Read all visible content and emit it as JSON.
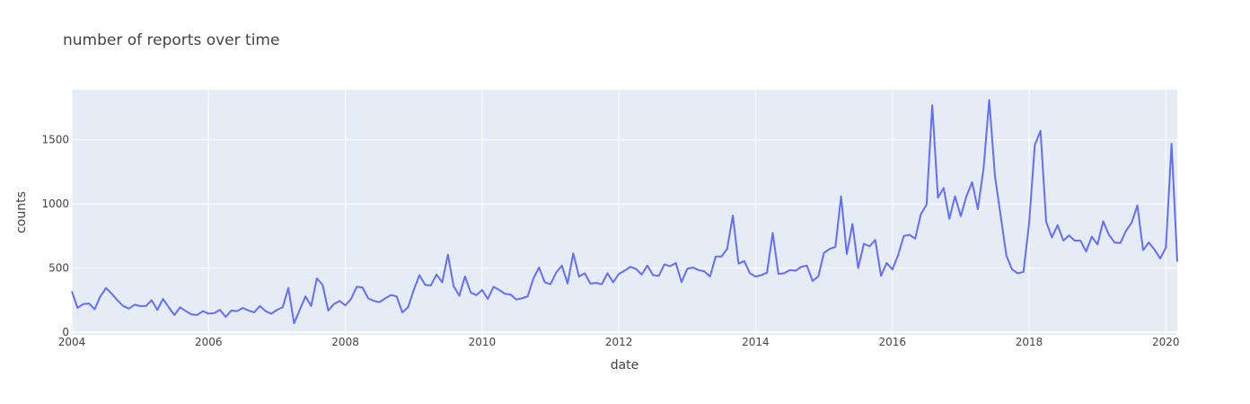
{
  "chart_data": {
    "type": "line",
    "title": "number of reports over time",
    "xlabel": "date",
    "ylabel": "counts",
    "xlim": [
      "2004-01",
      "2020-03"
    ],
    "ylim": [
      -20,
      1890
    ],
    "x_ticks": [
      "2004",
      "2006",
      "2008",
      "2010",
      "2012",
      "2014",
      "2016",
      "2018",
      "2020"
    ],
    "y_ticks": [
      0,
      500,
      1000,
      1500
    ],
    "grid": true,
    "legend": "none",
    "colors": {
      "line": "#636efa",
      "plot_bg": "#e5ecf6",
      "grid": "#ffffff",
      "text": "#444444"
    },
    "series": [
      {
        "x": [
          "2004-01",
          "2004-02",
          "2004-03",
          "2004-04",
          "2004-05",
          "2004-06",
          "2004-07",
          "2004-08",
          "2004-09",
          "2004-10",
          "2004-11",
          "2004-12",
          "2005-01",
          "2005-02",
          "2005-03",
          "2005-04",
          "2005-05",
          "2005-06",
          "2005-07",
          "2005-08",
          "2005-09",
          "2005-10",
          "2005-11",
          "2005-12",
          "2006-01",
          "2006-02",
          "2006-03",
          "2006-04",
          "2006-05",
          "2006-06",
          "2006-07",
          "2006-08",
          "2006-09",
          "2006-10",
          "2006-11",
          "2006-12",
          "2007-01",
          "2007-02",
          "2007-03",
          "2007-04",
          "2007-05",
          "2007-06",
          "2007-07",
          "2007-08",
          "2007-09",
          "2007-10",
          "2007-11",
          "2007-12",
          "2008-01",
          "2008-02",
          "2008-03",
          "2008-04",
          "2008-05",
          "2008-06",
          "2008-07",
          "2008-08",
          "2008-09",
          "2008-10",
          "2008-11",
          "2008-12",
          "2009-01",
          "2009-02",
          "2009-03",
          "2009-04",
          "2009-05",
          "2009-06",
          "2009-07",
          "2009-08",
          "2009-09",
          "2009-10",
          "2009-11",
          "2009-12",
          "2010-01",
          "2010-02",
          "2010-03",
          "2010-04",
          "2010-05",
          "2010-06",
          "2010-07",
          "2010-08",
          "2010-09",
          "2010-10",
          "2010-11",
          "2010-12",
          "2011-01",
          "2011-02",
          "2011-03",
          "2011-04",
          "2011-05",
          "2011-06",
          "2011-07",
          "2011-08",
          "2011-09",
          "2011-10",
          "2011-11",
          "2011-12",
          "2012-01",
          "2012-02",
          "2012-03",
          "2012-04",
          "2012-05",
          "2012-06",
          "2012-07",
          "2012-08",
          "2012-09",
          "2012-10",
          "2012-11",
          "2012-12",
          "2013-01",
          "2013-02",
          "2013-03",
          "2013-04",
          "2013-05",
          "2013-06",
          "2013-07",
          "2013-08",
          "2013-09",
          "2013-10",
          "2013-11",
          "2013-12",
          "2014-01",
          "2014-02",
          "2014-03",
          "2014-04",
          "2014-05",
          "2014-06",
          "2014-07",
          "2014-08",
          "2014-09",
          "2014-10",
          "2014-11",
          "2014-12",
          "2015-01",
          "2015-02",
          "2015-03",
          "2015-04",
          "2015-05",
          "2015-06",
          "2015-07",
          "2015-08",
          "2015-09",
          "2015-10",
          "2015-11",
          "2015-12",
          "2016-01",
          "2016-02",
          "2016-03",
          "2016-04",
          "2016-05",
          "2016-06",
          "2016-07",
          "2016-08",
          "2016-09",
          "2016-10",
          "2016-11",
          "2016-12",
          "2017-01",
          "2017-02",
          "2017-03",
          "2017-04",
          "2017-05",
          "2017-06",
          "2017-07",
          "2017-08",
          "2017-09",
          "2017-10",
          "2017-11",
          "2017-12",
          "2018-01",
          "2018-02",
          "2018-03",
          "2018-04",
          "2018-05",
          "2018-06",
          "2018-07",
          "2018-08",
          "2018-09",
          "2018-10",
          "2018-11",
          "2018-12",
          "2019-01",
          "2019-02",
          "2019-03",
          "2019-04",
          "2019-05",
          "2019-06",
          "2019-07",
          "2019-08",
          "2019-09",
          "2019-10",
          "2019-11",
          "2019-12",
          "2020-01",
          "2020-02",
          "2020-03"
        ],
        "y": [
          320,
          190,
          220,
          225,
          180,
          280,
          345,
          300,
          250,
          205,
          185,
          215,
          205,
          205,
          250,
          175,
          260,
          195,
          135,
          195,
          165,
          140,
          135,
          165,
          145,
          150,
          175,
          120,
          170,
          165,
          190,
          170,
          155,
          205,
          165,
          145,
          175,
          195,
          345,
          70,
          175,
          280,
          205,
          420,
          370,
          170,
          220,
          245,
          210,
          260,
          355,
          350,
          265,
          245,
          235,
          265,
          290,
          280,
          155,
          195,
          330,
          445,
          370,
          365,
          450,
          390,
          605,
          360,
          285,
          435,
          310,
          290,
          330,
          260,
          355,
          330,
          300,
          295,
          255,
          265,
          280,
          420,
          505,
          390,
          375,
          465,
          520,
          380,
          615,
          435,
          460,
          380,
          385,
          375,
          460,
          390,
          455,
          480,
          510,
          495,
          450,
          520,
          445,
          440,
          530,
          515,
          540,
          390,
          495,
          505,
          485,
          475,
          435,
          590,
          590,
          650,
          910,
          535,
          555,
          460,
          435,
          445,
          465,
          775,
          455,
          460,
          485,
          480,
          510,
          520,
          400,
          435,
          620,
          650,
          665,
          1060,
          610,
          845,
          500,
          690,
          670,
          720,
          440,
          540,
          490,
          600,
          750,
          760,
          730,
          920,
          995,
          1770,
          1050,
          1125,
          885,
          1060,
          905,
          1060,
          1170,
          960,
          1275,
          1810,
          1220,
          910,
          600,
          490,
          460,
          470,
          850,
          1460,
          1570,
          860,
          740,
          835,
          715,
          755,
          715,
          715,
          630,
          745,
          685,
          865,
          760,
          700,
          695,
          790,
          855,
          990,
          640,
          700,
          645,
          575,
          660,
          1470,
          550
        ]
      }
    ]
  }
}
